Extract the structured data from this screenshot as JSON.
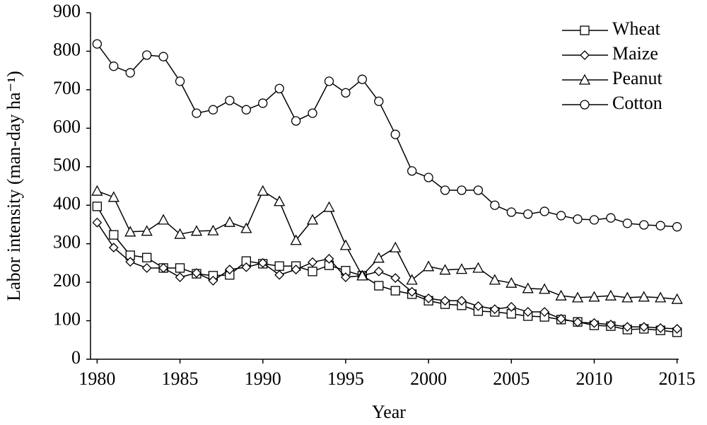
{
  "chart_data": {
    "type": "line",
    "xlabel": "Year",
    "ylabel": "Labor intensity (man-day ha⁻¹)",
    "x": [
      1980,
      1981,
      1982,
      1983,
      1984,
      1985,
      1986,
      1987,
      1988,
      1989,
      1990,
      1991,
      1992,
      1993,
      1994,
      1995,
      1996,
      1997,
      1998,
      1999,
      2000,
      2001,
      2002,
      2003,
      2004,
      2005,
      2006,
      2007,
      2008,
      2009,
      2010,
      2011,
      2012,
      2013,
      2014,
      2015
    ],
    "xlim": [
      1979.6,
      2015.1
    ],
    "xticks": [
      1980,
      1985,
      1990,
      1995,
      2000,
      2005,
      2010,
      2015
    ],
    "ylim": [
      0,
      900
    ],
    "yticks": [
      0,
      100,
      200,
      300,
      400,
      500,
      600,
      700,
      800,
      900
    ],
    "legend": "top-right",
    "series": [
      {
        "name": "Wheat",
        "color": "#000000",
        "marker": "square",
        "values": [
          397,
          323,
          270,
          264,
          237,
          237,
          222,
          217,
          219,
          255,
          248,
          242,
          242,
          228,
          244,
          230,
          217,
          191,
          178,
          169,
          152,
          143,
          140,
          125,
          123,
          118,
          112,
          110,
          103,
          97,
          88,
          86,
          77,
          79,
          75,
          70
        ]
      },
      {
        "name": "Maize",
        "color": "#000000",
        "marker": "diamond",
        "values": [
          355,
          290,
          253,
          237,
          237,
          213,
          224,
          204,
          233,
          239,
          250,
          219,
          233,
          252,
          261,
          213,
          217,
          228,
          211,
          175,
          158,
          152,
          152,
          138,
          130,
          136,
          123,
          123,
          105,
          96,
          94,
          90,
          84,
          84,
          81,
          79
        ]
      },
      {
        "name": "Peanut",
        "color": "#000000",
        "marker": "triangle",
        "values": [
          437,
          421,
          331,
          333,
          362,
          325,
          333,
          334,
          356,
          340,
          437,
          410,
          309,
          362,
          395,
          296,
          217,
          263,
          290,
          206,
          241,
          232,
          234,
          237,
          206,
          198,
          184,
          182,
          165,
          160,
          162,
          165,
          160,
          162,
          160,
          156
        ]
      },
      {
        "name": "Cotton",
        "color": "#000000",
        "marker": "circle",
        "values": [
          819,
          761,
          744,
          790,
          786,
          722,
          639,
          648,
          672,
          648,
          665,
          703,
          619,
          639,
          722,
          692,
          727,
          670,
          584,
          489,
          472,
          439,
          439,
          439,
          400,
          382,
          377,
          384,
          373,
          364,
          362,
          367,
          353,
          349,
          347,
          344
        ]
      }
    ]
  }
}
